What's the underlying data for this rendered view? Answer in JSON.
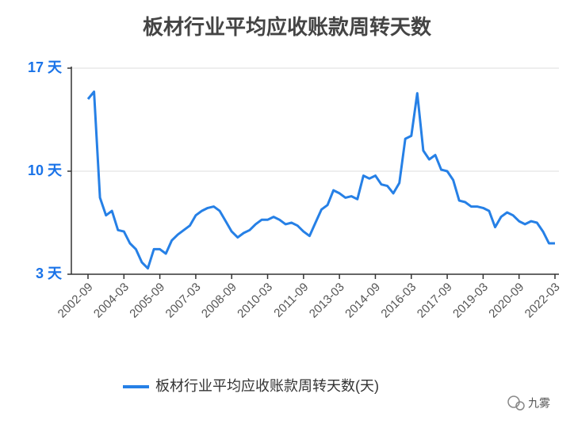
{
  "chart_data": {
    "type": "line",
    "title": "板材行业平均应收账款周转天数",
    "categories": [
      "2002-09",
      null,
      null,
      null,
      null,
      null,
      "2004-03",
      null,
      null,
      null,
      null,
      null,
      "2005-09",
      null,
      null,
      null,
      null,
      null,
      "2007-03",
      null,
      null,
      null,
      null,
      null,
      "2008-09",
      null,
      null,
      null,
      null,
      null,
      "2010-03",
      null,
      null,
      null,
      null,
      null,
      "2011-09",
      null,
      null,
      null,
      null,
      null,
      "2013-03",
      null,
      null,
      null,
      null,
      null,
      "2014-09",
      null,
      null,
      null,
      null,
      null,
      "2016-03",
      null,
      null,
      null,
      null,
      null,
      "2017-09",
      null,
      null,
      null,
      null,
      null,
      "2019-03",
      null,
      null,
      null,
      null,
      null,
      "2020-09",
      null,
      null,
      null,
      null,
      null,
      "2022-03"
    ],
    "series": [
      {
        "name": "板材行业平均应收账款周转天数(天)",
        "color": "#2680e6",
        "values": [
          14.9,
          15.4,
          8.2,
          7.0,
          7.3,
          6.0,
          5.9,
          5.1,
          4.7,
          3.8,
          3.4,
          4.7,
          4.7,
          4.4,
          5.3,
          5.7,
          6.0,
          6.3,
          7.0,
          7.3,
          7.5,
          7.6,
          7.3,
          6.6,
          5.9,
          5.5,
          5.8,
          6.0,
          6.4,
          6.7,
          6.7,
          6.9,
          6.7,
          6.4,
          6.5,
          6.3,
          5.9,
          5.6,
          6.5,
          7.4,
          7.7,
          8.7,
          8.5,
          8.2,
          8.3,
          8.1,
          9.7,
          9.5,
          9.7,
          9.1,
          9.0,
          8.5,
          9.2,
          12.2,
          12.4,
          15.3,
          11.4,
          10.8,
          11.1,
          10.1,
          10.0,
          9.4,
          8.0,
          7.9,
          7.6,
          7.6,
          7.5,
          7.3,
          6.2,
          6.9,
          7.2,
          7.0,
          6.6,
          6.4,
          6.6,
          6.5,
          5.9,
          5.1,
          5.1
        ]
      }
    ],
    "ylim": [
      3,
      17
    ],
    "yticks": [
      {
        "value": 3,
        "label": "3 天"
      },
      {
        "value": 10,
        "label": "10 天"
      },
      {
        "value": 17,
        "label": "17 天"
      }
    ],
    "grid": true,
    "legend": "bottom",
    "watermark": "九雾"
  }
}
